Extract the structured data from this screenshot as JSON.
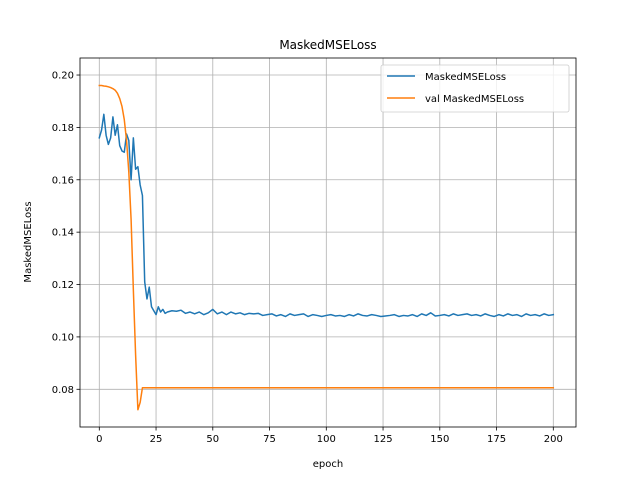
{
  "chart_data": {
    "type": "line",
    "title": "MaskedMSELoss",
    "xlabel": "epoch",
    "ylabel": "MaskedMSELoss",
    "xlim": [
      -8.5,
      210
    ],
    "ylim": [
      0.0656,
      0.2065
    ],
    "xticks": [
      0,
      25,
      50,
      75,
      100,
      125,
      150,
      175,
      200
    ],
    "yticks": [
      0.08,
      0.1,
      0.12,
      0.14,
      0.16,
      0.18,
      0.2
    ],
    "ytick_labels": [
      "0.08",
      "0.10",
      "0.12",
      "0.14",
      "0.16",
      "0.18",
      "0.20"
    ],
    "grid": true,
    "legend_position": "upper-right",
    "series": [
      {
        "name": "MaskedMSELoss",
        "color": "#1f77b4",
        "x": [
          0,
          1,
          2,
          3,
          4,
          5,
          6,
          7,
          8,
          9,
          10,
          11,
          12,
          13,
          14,
          15,
          16,
          17,
          18,
          19,
          20,
          21,
          22,
          23,
          24,
          25,
          26,
          27,
          28,
          29,
          30,
          32,
          34,
          36,
          38,
          40,
          42,
          44,
          46,
          48,
          50,
          52,
          54,
          56,
          58,
          60,
          62,
          64,
          66,
          68,
          70,
          72,
          74,
          76,
          78,
          80,
          82,
          84,
          86,
          88,
          90,
          92,
          94,
          96,
          98,
          100,
          102,
          104,
          106,
          108,
          110,
          112,
          114,
          116,
          118,
          120,
          122,
          124,
          126,
          128,
          130,
          132,
          134,
          136,
          138,
          140,
          142,
          144,
          146,
          148,
          150,
          152,
          154,
          156,
          158,
          160,
          162,
          164,
          166,
          168,
          170,
          172,
          174,
          176,
          178,
          180,
          182,
          184,
          186,
          188,
          190,
          192,
          194,
          196,
          198,
          200
        ],
        "y": [
          0.176,
          0.179,
          0.185,
          0.177,
          0.1735,
          0.176,
          0.184,
          0.177,
          0.181,
          0.173,
          0.171,
          0.1705,
          0.1775,
          0.175,
          0.16,
          0.176,
          0.164,
          0.165,
          0.158,
          0.154,
          0.121,
          0.1145,
          0.119,
          0.1115,
          0.11,
          0.1085,
          0.1115,
          0.1095,
          0.1105,
          0.109,
          0.1095,
          0.11,
          0.1098,
          0.1102,
          0.109,
          0.1095,
          0.1088,
          0.1095,
          0.1085,
          0.1092,
          0.1105,
          0.1088,
          0.1095,
          0.1085,
          0.1095,
          0.1088,
          0.1092,
          0.1085,
          0.109,
          0.1088,
          0.109,
          0.1082,
          0.1085,
          0.1088,
          0.108,
          0.1085,
          0.1078,
          0.1088,
          0.1082,
          0.1085,
          0.1088,
          0.1078,
          0.1085,
          0.1082,
          0.1078,
          0.1082,
          0.1085,
          0.108,
          0.1082,
          0.1078,
          0.1085,
          0.108,
          0.1088,
          0.1082,
          0.108,
          0.1085,
          0.1082,
          0.1078,
          0.108,
          0.1082,
          0.1085,
          0.1078,
          0.1082,
          0.108,
          0.1085,
          0.1078,
          0.1088,
          0.1082,
          0.1092,
          0.108,
          0.1082,
          0.1085,
          0.108,
          0.1088,
          0.1082,
          0.1085,
          0.1088,
          0.1082,
          0.1085,
          0.108,
          0.1088,
          0.1082,
          0.1078,
          0.1085,
          0.108,
          0.1088,
          0.1082,
          0.1085,
          0.1078,
          0.1088,
          0.1082,
          0.1085,
          0.108,
          0.1088,
          0.1082,
          0.1085
        ]
      },
      {
        "name": "val MaskedMSELoss",
        "color": "#ff7f0e",
        "x": [
          0,
          1,
          2,
          3,
          4,
          5,
          6,
          7,
          8,
          9,
          10,
          11,
          12,
          13,
          14,
          15,
          16,
          17,
          18,
          19,
          20,
          25,
          50,
          75,
          100,
          125,
          150,
          175,
          200
        ],
        "y": [
          0.196,
          0.196,
          0.1958,
          0.1957,
          0.1955,
          0.1952,
          0.1948,
          0.1942,
          0.193,
          0.191,
          0.188,
          0.183,
          0.175,
          0.163,
          0.145,
          0.118,
          0.093,
          0.0722,
          0.075,
          0.0806,
          0.0806,
          0.0806,
          0.0806,
          0.0806,
          0.0806,
          0.0806,
          0.0806,
          0.0806,
          0.0806
        ]
      }
    ]
  }
}
